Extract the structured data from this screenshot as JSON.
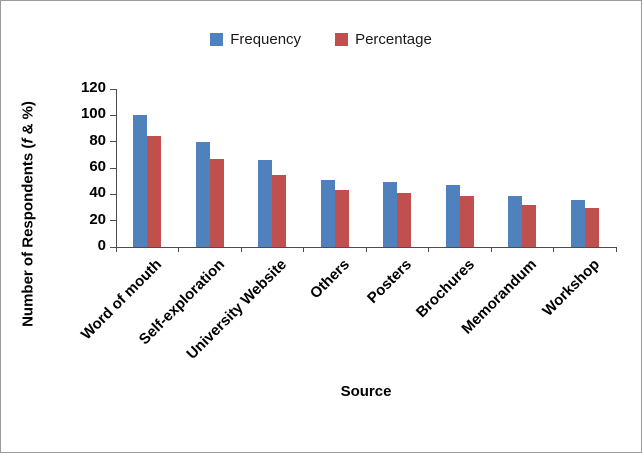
{
  "chart_data": {
    "type": "bar",
    "title": "",
    "categories": [
      "Word of mouth",
      "Self-exploration",
      "University Website",
      "Others",
      "Posters",
      "Brochures",
      "Memorandum",
      "Workshop"
    ],
    "series": [
      {
        "name": "Frequency",
        "color": "#4F81BD",
        "values": [
          100,
          80,
          66,
          51,
          49,
          47,
          39,
          36
        ]
      },
      {
        "name": "Percentage",
        "color": "#C0504D",
        "values": [
          84,
          67,
          55,
          43,
          41,
          39,
          32,
          30
        ]
      }
    ],
    "xlabel": "Source",
    "ylabel_prefix": "Number of Respondents (",
    "ylabel_italic": "f",
    "ylabel_suffix": " & %)",
    "ylim": [
      0,
      120
    ],
    "ytick_step": 20,
    "yticks": [
      0,
      20,
      40,
      60,
      80,
      100,
      120
    ],
    "legend_position": "top",
    "grid": false
  }
}
